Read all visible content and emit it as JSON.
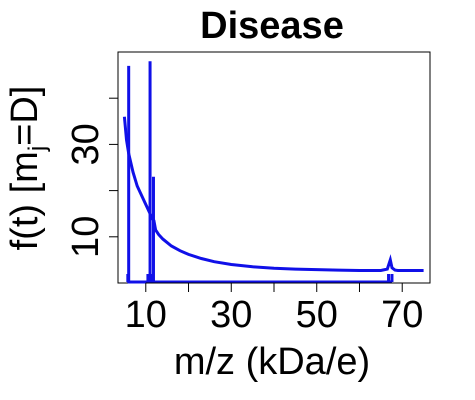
{
  "chart_data": {
    "type": "line",
    "title": "Disease",
    "xlabel": "m/z (kDa/e)",
    "ylabel": {
      "main": "f(t)  [m",
      "subscript": "j",
      "after": "=D]"
    },
    "xlim": [
      3.5,
      76.5
    ],
    "ylim": [
      0,
      50
    ],
    "x_ticks": [
      10,
      30,
      50,
      70
    ],
    "y_ticks": [
      10,
      30
    ],
    "grid": false,
    "legend": "none",
    "color": "#1010e8",
    "series": [
      {
        "x": [
          5,
          5.5,
          6,
          7,
          8,
          9,
          10,
          11,
          11.5,
          11.9,
          12.3,
          13,
          14,
          16,
          18,
          20,
          23,
          26,
          30,
          35,
          40,
          45,
          50,
          55,
          60,
          65,
          66.5,
          67.2,
          67.6,
          68.3,
          69,
          72,
          75
        ],
        "y": [
          36,
          31,
          28,
          24,
          21,
          19,
          17,
          15,
          14,
          13.5,
          11.5,
          10.5,
          9.5,
          8,
          7,
          6.2,
          5.3,
          4.6,
          4,
          3.5,
          3.2,
          3.0,
          2.9,
          2.8,
          2.7,
          2.7,
          3.0,
          5.0,
          3.3,
          2.8,
          2.7,
          2.7,
          2.7
        ]
      }
    ],
    "spikes": [
      {
        "x": 6.0,
        "y": 47
      },
      {
        "x": 11.0,
        "y": 48
      },
      {
        "x": 11.8,
        "y": 23
      }
    ],
    "baseline_markers": [
      5.8,
      10.5,
      11.5,
      66.8,
      67.6
    ]
  }
}
